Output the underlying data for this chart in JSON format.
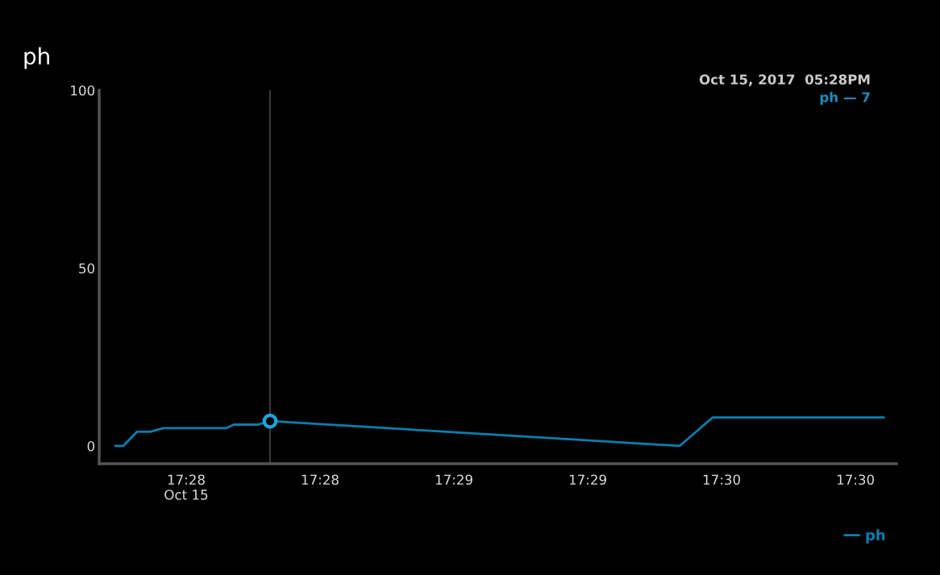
{
  "chart_data": {
    "type": "line",
    "title": "ph",
    "x": [
      17.45808,
      17.45858,
      17.45944,
      17.46027,
      17.46108,
      17.46497,
      17.46547,
      17.46697,
      17.46772,
      17.49322,
      17.49527,
      17.50594
    ],
    "series": [
      {
        "name": "ph",
        "color": "#0a7fb0",
        "values": [
          0,
          0,
          4,
          4,
          5,
          5,
          6,
          6,
          7,
          0,
          8,
          8
        ]
      },
      {
        "type": "scatter",
        "color": "#1aa6dc",
        "x": [
          17.46772
        ],
        "values": [
          7
        ],
        "marker": "circle"
      }
    ],
    "xlim": [
      17.45708,
      17.50672
    ],
    "xticks": [
      {
        "value": 17.4625,
        "label": "17:28\nOct 15"
      },
      {
        "value": 17.470833,
        "label": "17:28"
      },
      {
        "value": 17.479167,
        "label": "17:29"
      },
      {
        "value": 17.4875,
        "label": "17:29"
      },
      {
        "value": 17.495833,
        "label": "17:30"
      },
      {
        "value": 17.504167,
        "label": "17:30"
      }
    ],
    "ylim": [
      -5,
      100
    ],
    "yticks": [
      0,
      50,
      100
    ],
    "ref_lines": [
      {
        "axis": "x",
        "value": 17.46772,
        "color": "#555555"
      }
    ],
    "annotations": [
      "Oct 15, 2017  05:28PM",
      "ph — 7"
    ],
    "legend": "bottom right",
    "grid": false,
    "marker": "none",
    "line_style": "solid"
  }
}
